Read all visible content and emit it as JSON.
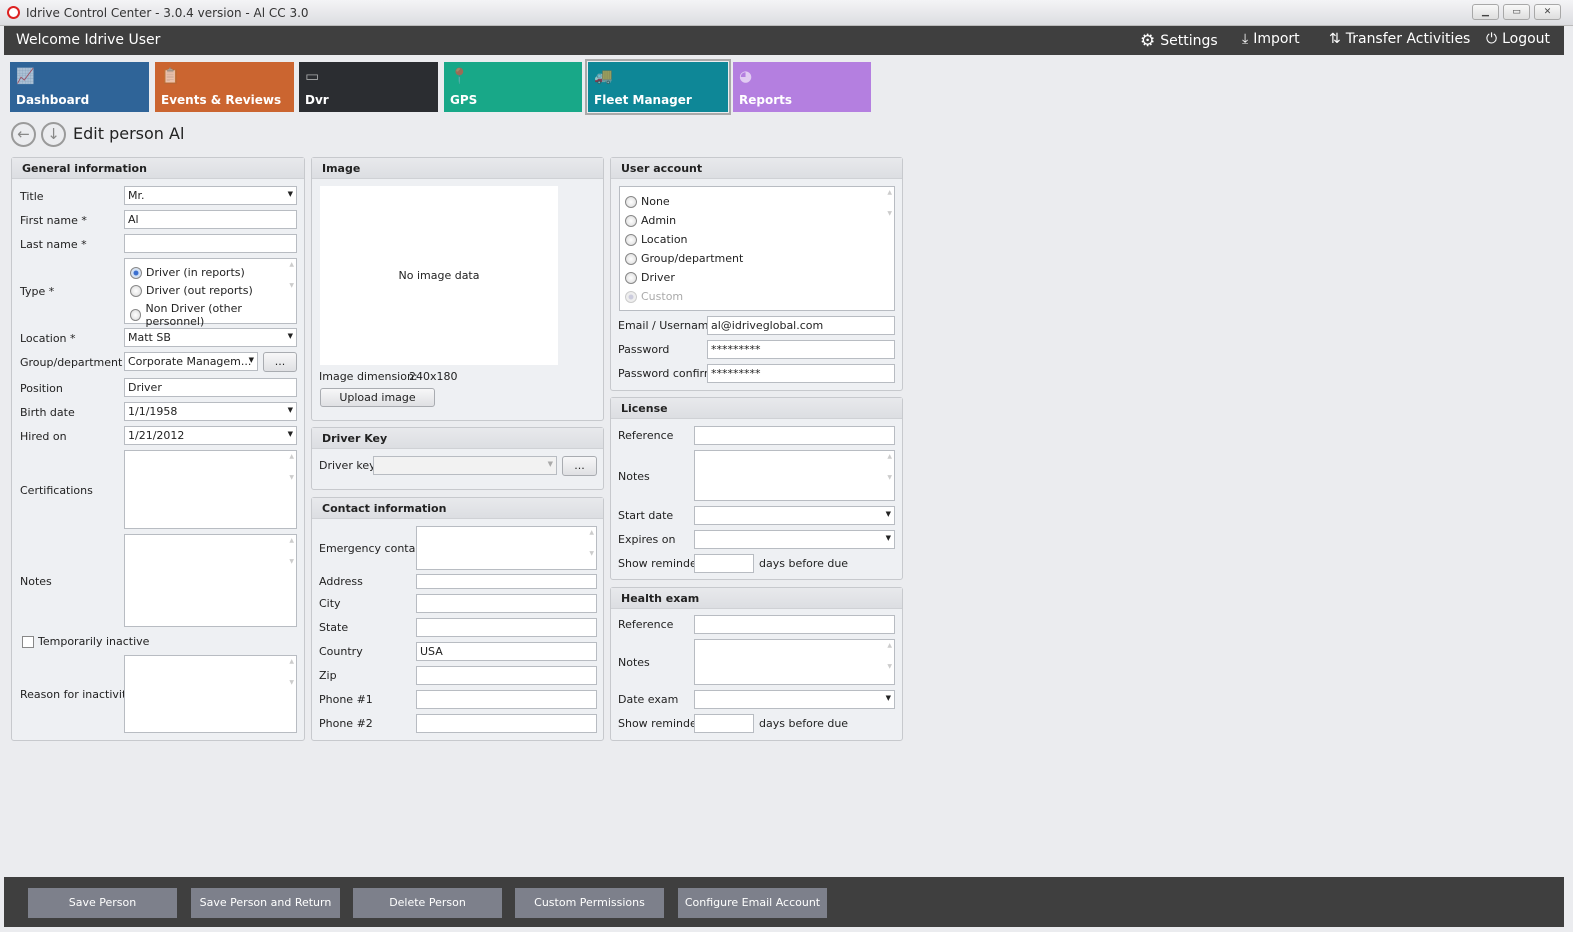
{
  "window": {
    "title": "Idrive Control Center - 3.0.4 version - Al CC 3.0",
    "min": "▁",
    "max": "▭",
    "close": "✕"
  },
  "header": {
    "welcome": "Welcome Idrive User",
    "settings": "Settings",
    "import": "Import",
    "transfer": "Transfer Activities",
    "logout": "Logout"
  },
  "tiles": [
    {
      "label": "Dashboard",
      "color": "#2f6498",
      "icon": "chart-icon"
    },
    {
      "label": "Events & Reviews",
      "color": "#cb6530",
      "icon": "clipboard-icon"
    },
    {
      "label": "Dvr",
      "color": "#2b2d31",
      "icon": "dvr-icon"
    },
    {
      "label": "GPS",
      "color": "#18a888",
      "icon": "map-pin-icon"
    },
    {
      "label": "Fleet Manager",
      "color": "#0e8797",
      "icon": "trucks-icon",
      "selected": true
    },
    {
      "label": "Reports",
      "color": "#b47fe0",
      "icon": "pie-icon"
    }
  ],
  "page": {
    "title": "Edit person Al"
  },
  "general": {
    "header": "General information",
    "title_label": "Title",
    "title_value": "Mr.",
    "first_label": "First name *",
    "first_value": "Al",
    "last_label": "Last name *",
    "last_value": "",
    "type_label": "Type *",
    "type_options": [
      "Driver (in reports)",
      "Driver (out reports)",
      "Non Driver (other personnel)"
    ],
    "type_selected": "Driver (in reports)",
    "location_label": "Location *",
    "location_value": "Matt SB",
    "group_label": "Group/department",
    "group_value": "Corporate Managem...",
    "group_button": "...",
    "position_label": "Position",
    "position_value": "Driver",
    "birth_label": "Birth date",
    "birth_value": "1/1/1958",
    "hired_label": "Hired on",
    "hired_value": "1/21/2012",
    "cert_label": "Certifications",
    "notes_label": "Notes",
    "inactive_label": "Temporarily inactive",
    "inactive_checked": false,
    "reason_label": "Reason for inactivity"
  },
  "image": {
    "header": "Image",
    "empty": "No image data",
    "dimension_label": "Image dimension:",
    "dimension_value": "240x180",
    "upload": "Upload image"
  },
  "driver_key": {
    "header": "Driver Key",
    "label": "Driver key",
    "value": "",
    "button": "..."
  },
  "contact": {
    "header": "Contact information",
    "emergency": "Emergency contact",
    "address": "Address",
    "city": "City",
    "state": "State",
    "country": "Country",
    "country_value": "USA",
    "zip": "Zip",
    "phone1": "Phone #1",
    "phone2": "Phone #2"
  },
  "user_account": {
    "header": "User account",
    "options": [
      "None",
      "Admin",
      "Location",
      "Group/department",
      "Driver",
      "Custom"
    ],
    "selected": "Custom",
    "email_label": "Email / Username",
    "email_value": "al@idriveglobal.com",
    "password_label": "Password",
    "password_value": "*********",
    "confirm_label": "Password confirm",
    "confirm_value": "*********"
  },
  "license": {
    "header": "License",
    "reference": "Reference",
    "notes": "Notes",
    "start": "Start date",
    "expires": "Expires on",
    "reminder": "Show reminder",
    "days": "days before due"
  },
  "health": {
    "header": "Health exam",
    "reference": "Reference",
    "notes": "Notes",
    "date": "Date exam",
    "reminder": "Show reminder",
    "days": "days before due"
  },
  "footer": {
    "save": "Save Person",
    "save_return": "Save Person and Return",
    "delete": "Delete Person",
    "permissions": "Custom Permissions",
    "email": "Configure Email Account"
  }
}
